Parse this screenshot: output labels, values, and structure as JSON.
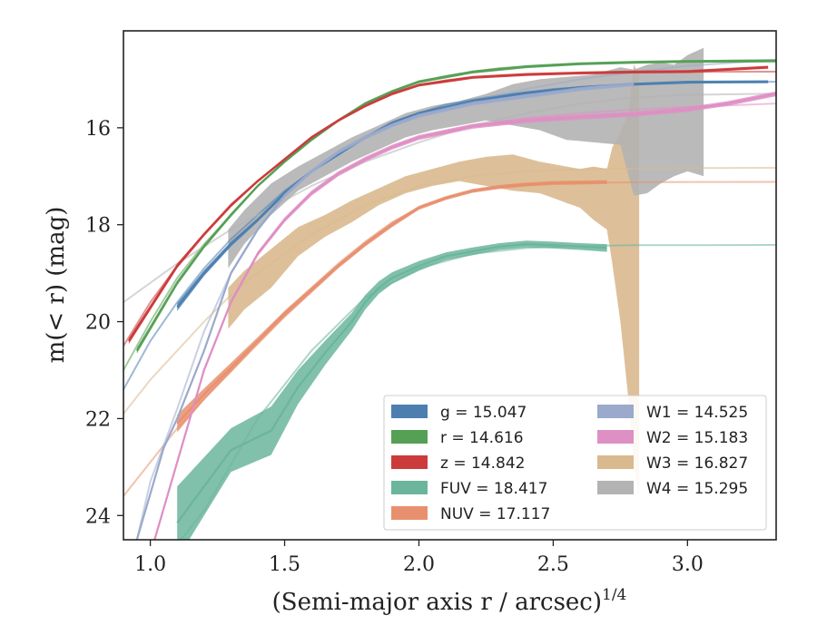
{
  "chart_data": {
    "type": "line",
    "title": "",
    "xlabel": "(Semi-major axis r / arcsec)",
    "xlabel_sup": "1/4",
    "ylabel": "m(< r) (mag)",
    "xlim": [
      0.9,
      3.33
    ],
    "ylim": [
      24.5,
      14.0
    ],
    "y_inverted": true,
    "xticks": [
      1.0,
      1.5,
      2.0,
      2.5,
      3.0
    ],
    "xtick_labels": [
      "1.0",
      "1.5",
      "2.0",
      "2.5",
      "3.0"
    ],
    "yticks": [
      16,
      18,
      20,
      22,
      24
    ],
    "ytick_labels": [
      "16",
      "18",
      "20",
      "22",
      "24"
    ],
    "grid": false,
    "legend_position": "lower-right",
    "series": [
      {
        "name": "g",
        "label": "g = 15.047",
        "color": "#4c7fb0",
        "asymptote": 15.047,
        "model_x": [
          0.9,
          1.0,
          1.1,
          1.2,
          1.3,
          1.4,
          1.5,
          1.6,
          1.7,
          1.8,
          1.9,
          2.0,
          2.1,
          2.2,
          2.3,
          2.4,
          2.5,
          2.7,
          2.9,
          3.1,
          3.33
        ],
        "model_y": [
          21.4,
          20.4,
          19.6,
          18.9,
          18.3,
          17.8,
          17.3,
          16.9,
          16.55,
          16.2,
          15.9,
          15.7,
          15.52,
          15.42,
          15.33,
          15.27,
          15.2,
          15.13,
          15.08,
          15.06,
          15.05
        ],
        "data_x": [
          1.1,
          1.2,
          1.3,
          1.4,
          1.5,
          1.6,
          1.7,
          1.8,
          1.9,
          2.0,
          2.2,
          2.4,
          2.6,
          2.8,
          3.0,
          3.3
        ],
        "data_y": [
          19.7,
          19.0,
          18.4,
          17.9,
          17.35,
          16.9,
          16.55,
          16.2,
          15.9,
          15.7,
          15.45,
          15.28,
          15.17,
          15.1,
          15.06,
          15.05
        ],
        "err": [
          0.08,
          0.06,
          0.05,
          0.04,
          0.04,
          0.03,
          0.03,
          0.03,
          0.03,
          0.03,
          0.03,
          0.03,
          0.03,
          0.03,
          0.03,
          0.03
        ]
      },
      {
        "name": "r",
        "label": "r = 14.616",
        "color": "#55a055",
        "asymptote": 14.616,
        "model_x": [
          0.9,
          1.0,
          1.1,
          1.2,
          1.3,
          1.4,
          1.5,
          1.6,
          1.7,
          1.8,
          1.9,
          2.0,
          2.1,
          2.2,
          2.3,
          2.5,
          2.7,
          2.9,
          3.1,
          3.33
        ],
        "model_y": [
          21.0,
          20.0,
          19.1,
          18.4,
          17.8,
          17.2,
          16.7,
          16.25,
          15.85,
          15.5,
          15.25,
          15.05,
          14.93,
          14.84,
          14.77,
          14.7,
          14.66,
          14.64,
          14.62,
          14.6
        ],
        "data_x": [
          0.95,
          1.1,
          1.2,
          1.3,
          1.4,
          1.5,
          1.6,
          1.7,
          1.8,
          1.9,
          2.0,
          2.2,
          2.4,
          2.6,
          2.8,
          3.0,
          3.33
        ],
        "data_y": [
          20.6,
          19.2,
          18.45,
          17.8,
          17.2,
          16.7,
          16.25,
          15.85,
          15.5,
          15.25,
          15.05,
          14.85,
          14.74,
          14.68,
          14.65,
          14.63,
          14.62
        ],
        "err": [
          0.06,
          0.05,
          0.04,
          0.04,
          0.03,
          0.03,
          0.03,
          0.03,
          0.03,
          0.03,
          0.03,
          0.03,
          0.03,
          0.03,
          0.03,
          0.03,
          0.03
        ]
      },
      {
        "name": "z",
        "label": "z = 14.842",
        "color": "#cc3b3b",
        "asymptote": 14.842,
        "model_x": [
          0.9,
          1.0,
          1.1,
          1.2,
          1.3,
          1.4,
          1.5,
          1.6,
          1.7,
          1.8,
          1.9,
          2.0,
          2.1,
          2.2,
          2.3,
          2.5,
          2.7,
          2.9,
          3.1,
          3.33
        ],
        "model_y": [
          20.5,
          19.6,
          18.85,
          18.2,
          17.6,
          17.1,
          16.65,
          16.2,
          15.85,
          15.55,
          15.3,
          15.12,
          15.02,
          14.96,
          14.92,
          14.88,
          14.86,
          14.85,
          14.845,
          14.842
        ],
        "data_x": [
          0.92,
          1.1,
          1.2,
          1.3,
          1.4,
          1.5,
          1.6,
          1.7,
          1.8,
          1.9,
          2.0,
          2.2,
          2.4,
          2.6,
          2.8,
          3.0,
          3.3
        ],
        "data_y": [
          20.4,
          18.85,
          18.2,
          17.6,
          17.1,
          16.65,
          16.2,
          15.85,
          15.55,
          15.3,
          15.12,
          14.96,
          14.9,
          14.87,
          14.85,
          14.84,
          14.75
        ],
        "err": [
          0.06,
          0.05,
          0.04,
          0.04,
          0.03,
          0.03,
          0.03,
          0.03,
          0.03,
          0.03,
          0.03,
          0.03,
          0.03,
          0.03,
          0.03,
          0.03,
          0.03
        ]
      },
      {
        "name": "FUV",
        "label": "FUV = 18.417",
        "color": "#6bb59c",
        "asymptote": 18.417,
        "model_x": [
          0.9,
          1.0,
          1.1,
          1.2,
          1.4,
          1.6,
          1.8,
          2.0,
          2.2,
          2.4,
          2.6,
          2.8,
          3.0,
          3.33
        ],
        "model_y": [
          26.0,
          25.3,
          24.6,
          23.9,
          22.0,
          20.6,
          19.5,
          18.9,
          18.6,
          18.48,
          18.44,
          18.42,
          18.42,
          18.417
        ],
        "data_x": [
          1.1,
          1.3,
          1.45,
          1.55,
          1.65,
          1.75,
          1.8,
          1.85,
          1.9,
          2.0,
          2.1,
          2.2,
          2.3,
          2.4,
          2.5,
          2.6,
          2.7
        ],
        "data_y": [
          24.15,
          22.65,
          22.25,
          21.35,
          20.65,
          20.0,
          19.6,
          19.3,
          19.1,
          18.85,
          18.65,
          18.55,
          18.45,
          18.4,
          18.42,
          18.45,
          18.48
        ],
        "err": [
          0.75,
          0.45,
          0.5,
          0.35,
          0.25,
          0.18,
          0.15,
          0.13,
          0.12,
          0.1,
          0.08,
          0.08,
          0.07,
          0.07,
          0.07,
          0.07,
          0.08
        ]
      },
      {
        "name": "NUV",
        "label": "NUV = 17.117",
        "color": "#e8906e",
        "asymptote": 17.117,
        "model_x": [
          0.9,
          1.0,
          1.1,
          1.2,
          1.3,
          1.4,
          1.5,
          1.6,
          1.7,
          1.8,
          1.9,
          2.0,
          2.1,
          2.2,
          2.3,
          2.5,
          2.7,
          2.9,
          3.1,
          3.33
        ],
        "model_y": [
          23.6,
          22.9,
          22.2,
          21.6,
          21.0,
          20.4,
          19.8,
          19.3,
          18.8,
          18.35,
          17.95,
          17.65,
          17.45,
          17.3,
          17.22,
          17.15,
          17.13,
          17.12,
          17.118,
          17.117
        ],
        "data_x": [
          1.1,
          1.2,
          1.3,
          1.4,
          1.5,
          1.6,
          1.7,
          1.8,
          1.9,
          2.0,
          2.1,
          2.2,
          2.3,
          2.4,
          2.5,
          2.6,
          2.7
        ],
        "data_y": [
          22.1,
          21.5,
          20.95,
          20.4,
          19.85,
          19.35,
          18.85,
          18.4,
          18.0,
          17.65,
          17.45,
          17.3,
          17.22,
          17.17,
          17.14,
          17.13,
          17.12
        ],
        "err": [
          0.18,
          0.12,
          0.1,
          0.08,
          0.07,
          0.06,
          0.05,
          0.05,
          0.05,
          0.04,
          0.04,
          0.04,
          0.04,
          0.04,
          0.04,
          0.04,
          0.04
        ]
      },
      {
        "name": "W1",
        "label": "W1 = 14.525",
        "color": "#9aa9cc",
        "asymptote": 14.525,
        "model_x": [
          0.95,
          1.0,
          1.1,
          1.2,
          1.3,
          1.4,
          1.5,
          1.6,
          1.7,
          1.8,
          1.9,
          2.0,
          2.2,
          2.4,
          2.6,
          2.8,
          3.0,
          3.33
        ],
        "model_y": [
          24.5,
          23.3,
          21.8,
          20.2,
          19.0,
          18.1,
          17.4,
          16.9,
          16.5,
          16.2,
          15.95,
          15.75,
          15.45,
          15.2,
          15.0,
          14.85,
          14.72,
          14.6
        ],
        "data_x": [
          0.95,
          1.05,
          1.1,
          1.2,
          1.3,
          1.4,
          1.5,
          1.6,
          1.7,
          1.8,
          1.9,
          2.0,
          2.2,
          2.4,
          2.6,
          2.8
        ],
        "data_y": [
          24.5,
          22.6,
          22.0,
          20.6,
          19.0,
          18.1,
          17.4,
          16.9,
          16.5,
          16.2,
          15.95,
          15.75,
          15.5,
          15.35,
          15.2,
          15.1
        ],
        "err": [
          0.04,
          0.04,
          0.04,
          0.04,
          0.04,
          0.04,
          0.04,
          0.04,
          0.04,
          0.04,
          0.04,
          0.04,
          0.04,
          0.04,
          0.04,
          0.04
        ]
      },
      {
        "name": "W2",
        "label": "W2 = 15.183",
        "color": "#de8fc4",
        "asymptote": 15.183,
        "model_x": [
          1.0,
          1.1,
          1.2,
          1.3,
          1.4,
          1.5,
          1.6,
          1.7,
          1.8,
          1.9,
          2.0,
          2.2,
          2.4,
          2.6,
          2.8,
          3.0,
          3.33
        ],
        "model_y": [
          24.8,
          22.9,
          21.0,
          19.6,
          18.6,
          17.9,
          17.35,
          16.95,
          16.65,
          16.4,
          16.2,
          15.95,
          15.8,
          15.7,
          15.62,
          15.57,
          15.5
        ],
        "data_x": [
          1.0,
          1.1,
          1.2,
          1.3,
          1.4,
          1.5,
          1.6,
          1.7,
          1.8,
          1.9,
          2.0,
          2.2,
          2.4,
          2.6,
          2.8,
          3.0,
          3.15,
          3.33
        ],
        "data_y": [
          24.8,
          22.9,
          21.0,
          19.6,
          18.6,
          17.9,
          17.35,
          16.95,
          16.65,
          16.4,
          16.2,
          15.97,
          15.85,
          15.78,
          15.72,
          15.62,
          15.5,
          15.3
        ],
        "err": [
          0.05,
          0.05,
          0.05,
          0.05,
          0.05,
          0.05,
          0.05,
          0.05,
          0.05,
          0.05,
          0.05,
          0.05,
          0.05,
          0.05,
          0.05,
          0.05,
          0.05,
          0.05
        ]
      },
      {
        "name": "W3",
        "label": "W3 = 16.827",
        "color": "#d9b98e",
        "asymptote": 16.827,
        "model_x": [
          0.9,
          1.0,
          1.1,
          1.2,
          1.3,
          1.4,
          1.5,
          1.6,
          1.7,
          1.8,
          1.9,
          2.0,
          2.2,
          2.4,
          2.6,
          2.8,
          3.0,
          3.33
        ],
        "model_y": [
          21.9,
          21.2,
          20.6,
          20.0,
          19.45,
          19.0,
          18.6,
          18.2,
          17.9,
          17.6,
          17.4,
          17.2,
          17.0,
          16.9,
          16.86,
          16.84,
          16.83,
          16.827
        ],
        "band_x": [
          1.29,
          1.35,
          1.45,
          1.55,
          1.65,
          1.75,
          1.85,
          1.95,
          2.05,
          2.15,
          2.25,
          2.35,
          2.45,
          2.5,
          2.55,
          2.6,
          2.65,
          2.7,
          2.72,
          2.75,
          2.78,
          2.8,
          2.82
        ],
        "band_lo": [
          20.15,
          19.75,
          19.3,
          18.65,
          18.25,
          17.95,
          17.6,
          17.35,
          17.2,
          17.1,
          17.2,
          17.3,
          17.35,
          17.45,
          17.55,
          17.65,
          17.9,
          18.1,
          18.8,
          20.0,
          21.6,
          23.0,
          23.6
        ],
        "band_hi": [
          19.3,
          18.95,
          18.5,
          18.05,
          17.8,
          17.5,
          17.25,
          17.0,
          16.85,
          16.7,
          16.6,
          16.55,
          16.7,
          16.75,
          16.8,
          16.85,
          16.8,
          16.85,
          16.4,
          16.1,
          15.7,
          14.7,
          14.9
        ]
      },
      {
        "name": "W4",
        "label": "W4 = 15.295",
        "color": "#b3b3b3",
        "asymptote": 15.295,
        "model_x": [
          0.9,
          1.0,
          1.1,
          1.2,
          1.3,
          1.4,
          1.5,
          1.6,
          1.8,
          2.0,
          2.2,
          2.4,
          2.6,
          2.8,
          3.0,
          3.33
        ],
        "model_y": [
          19.6,
          19.2,
          18.8,
          18.45,
          18.1,
          17.8,
          17.5,
          17.2,
          16.7,
          16.3,
          15.95,
          15.7,
          15.5,
          15.38,
          15.32,
          15.295
        ],
        "band_x": [
          1.29,
          1.35,
          1.45,
          1.55,
          1.65,
          1.75,
          1.85,
          1.95,
          2.05,
          2.15,
          2.25,
          2.35,
          2.45,
          2.55,
          2.65,
          2.75,
          2.8,
          2.85,
          2.9,
          2.95,
          3.0,
          3.06
        ],
        "band_lo": [
          18.9,
          18.4,
          17.8,
          17.3,
          17.0,
          16.7,
          16.45,
          16.2,
          16.05,
          15.95,
          15.85,
          15.95,
          16.05,
          16.25,
          16.3,
          16.35,
          17.4,
          17.35,
          17.15,
          17.0,
          16.9,
          17.0
        ],
        "band_hi": [
          18.1,
          17.7,
          17.15,
          16.8,
          16.5,
          16.2,
          15.95,
          15.7,
          15.55,
          15.45,
          15.3,
          15.1,
          15.0,
          14.95,
          14.9,
          14.75,
          14.8,
          14.7,
          14.65,
          14.7,
          14.5,
          14.35
        ]
      }
    ]
  }
}
